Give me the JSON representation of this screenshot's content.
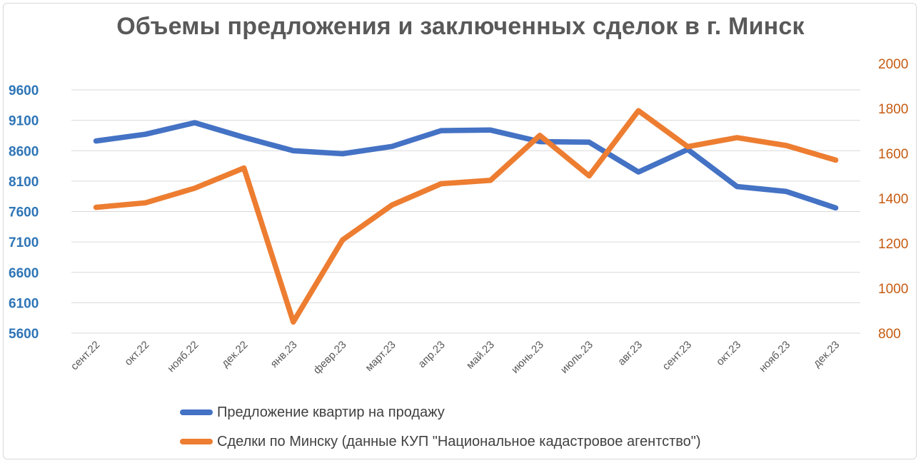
{
  "chart_data": {
    "type": "line",
    "title": "Объемы предложения и заключенных сделок в г. Минск",
    "categories": [
      "сент.22",
      "окт.22",
      "нояб.22",
      "дек.22",
      "янв.23",
      "февр.23",
      "март.23",
      "апр.23",
      "май.23",
      "июнь.23",
      "июль.23",
      "авг.23",
      "сент.23",
      "окт.23",
      "нояб.23",
      "дек.23"
    ],
    "y_left": {
      "ticks": [
        "5600",
        "6100",
        "6600",
        "7100",
        "7600",
        "8100",
        "8600",
        "9100",
        "9600"
      ],
      "ylim": [
        5600,
        9600
      ]
    },
    "y_right": {
      "ticks": [
        "800",
        "1000",
        "1200",
        "1400",
        "1600",
        "1800",
        "2000"
      ],
      "ylim": [
        800,
        2000
      ]
    },
    "grid": true,
    "legend_position": "bottom",
    "series": [
      {
        "name": "Предложение квартир на продажу",
        "axis": "left",
        "color": "#4472c4",
        "values": [
          8760,
          8870,
          9060,
          8820,
          8600,
          8550,
          8670,
          8930,
          8940,
          8750,
          8740,
          8250,
          8620,
          8010,
          7930,
          7660
        ]
      },
      {
        "name": "Сделки по Минску (данные КУП \"Национальное кадастровое агентство\")",
        "axis": "right",
        "color": "#ed7d31",
        "values": [
          1360,
          1380,
          1445,
          1535,
          850,
          1215,
          1370,
          1465,
          1480,
          1680,
          1500,
          1790,
          1630,
          1670,
          1635,
          1570
        ]
      }
    ]
  }
}
